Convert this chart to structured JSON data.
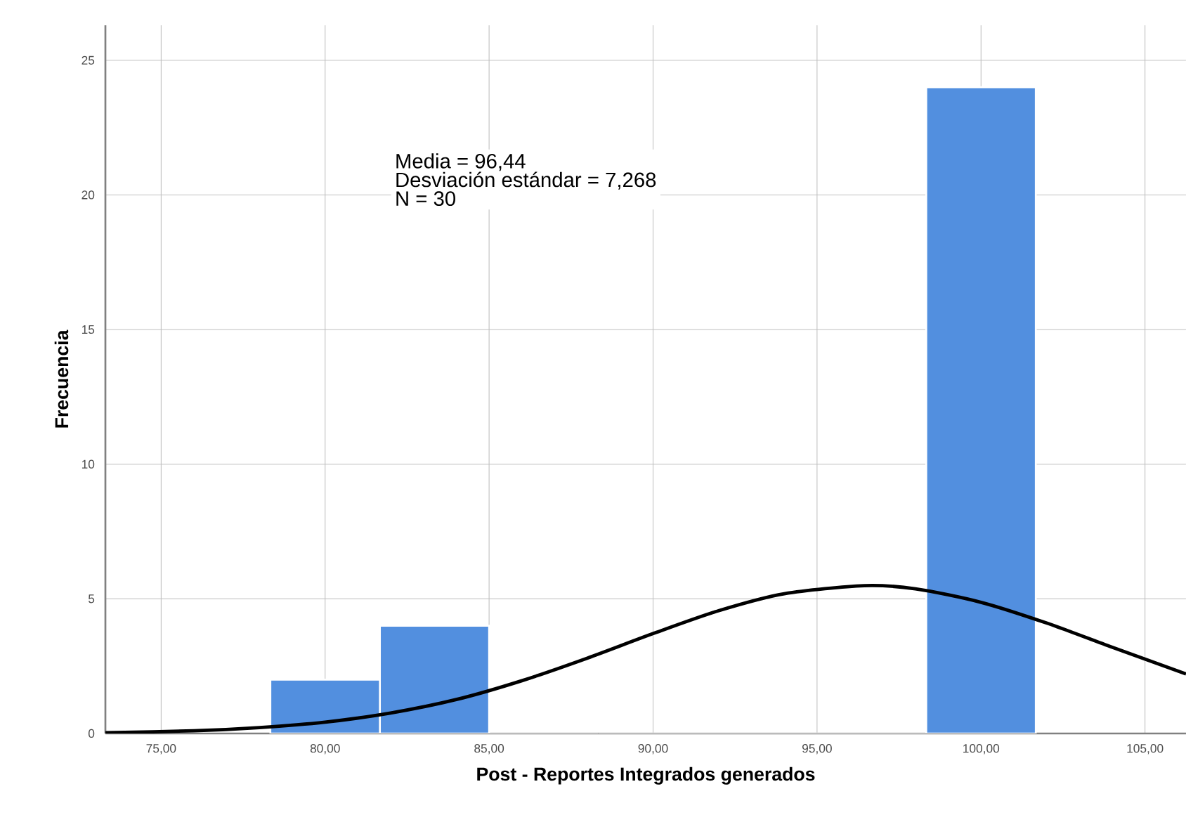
{
  "chart_data": {
    "type": "histogram",
    "xlabel": "Post - Reportes Integrados generados",
    "ylabel": "Frecuencia",
    "annotations": [
      "Media = 96,44",
      "Desviación estándar = 7,268",
      "N = 30"
    ],
    "series": [
      {
        "bins": [
          78.33,
          81.67,
          85,
          88.33,
          91.67,
          95,
          98.33,
          101.67
        ],
        "values": [
          2,
          4,
          0,
          0,
          0,
          0,
          24
        ],
        "color": "#528fdf"
      },
      {
        "type": "line",
        "color": "#000000",
        "x": [
          73.3,
          76,
          78,
          80,
          82,
          84,
          86,
          88,
          90,
          92,
          94,
          96.44,
          98,
          100,
          102,
          104,
          106.25
        ],
        "values": [
          0.03,
          0.1,
          0.22,
          0.42,
          0.76,
          1.26,
          1.96,
          2.8,
          3.71,
          4.56,
          5.19,
          5.49,
          5.37,
          4.87,
          4.1,
          3.2,
          2.21
        ]
      }
    ],
    "xlim": [
      73.3,
      106.25
    ],
    "ylim": [
      0,
      26.3
    ],
    "xticks": [
      {
        "value": 75,
        "label": "75,00"
      },
      {
        "value": 80,
        "label": "80,00"
      },
      {
        "value": 85,
        "label": "85,00"
      },
      {
        "value": 90,
        "label": "90,00"
      },
      {
        "value": 95,
        "label": "95,00"
      },
      {
        "value": 100,
        "label": "100,00"
      },
      {
        "value": 105,
        "label": "105,00"
      }
    ],
    "yticks": [
      0,
      5,
      10,
      15,
      20,
      25
    ],
    "grid": true
  }
}
